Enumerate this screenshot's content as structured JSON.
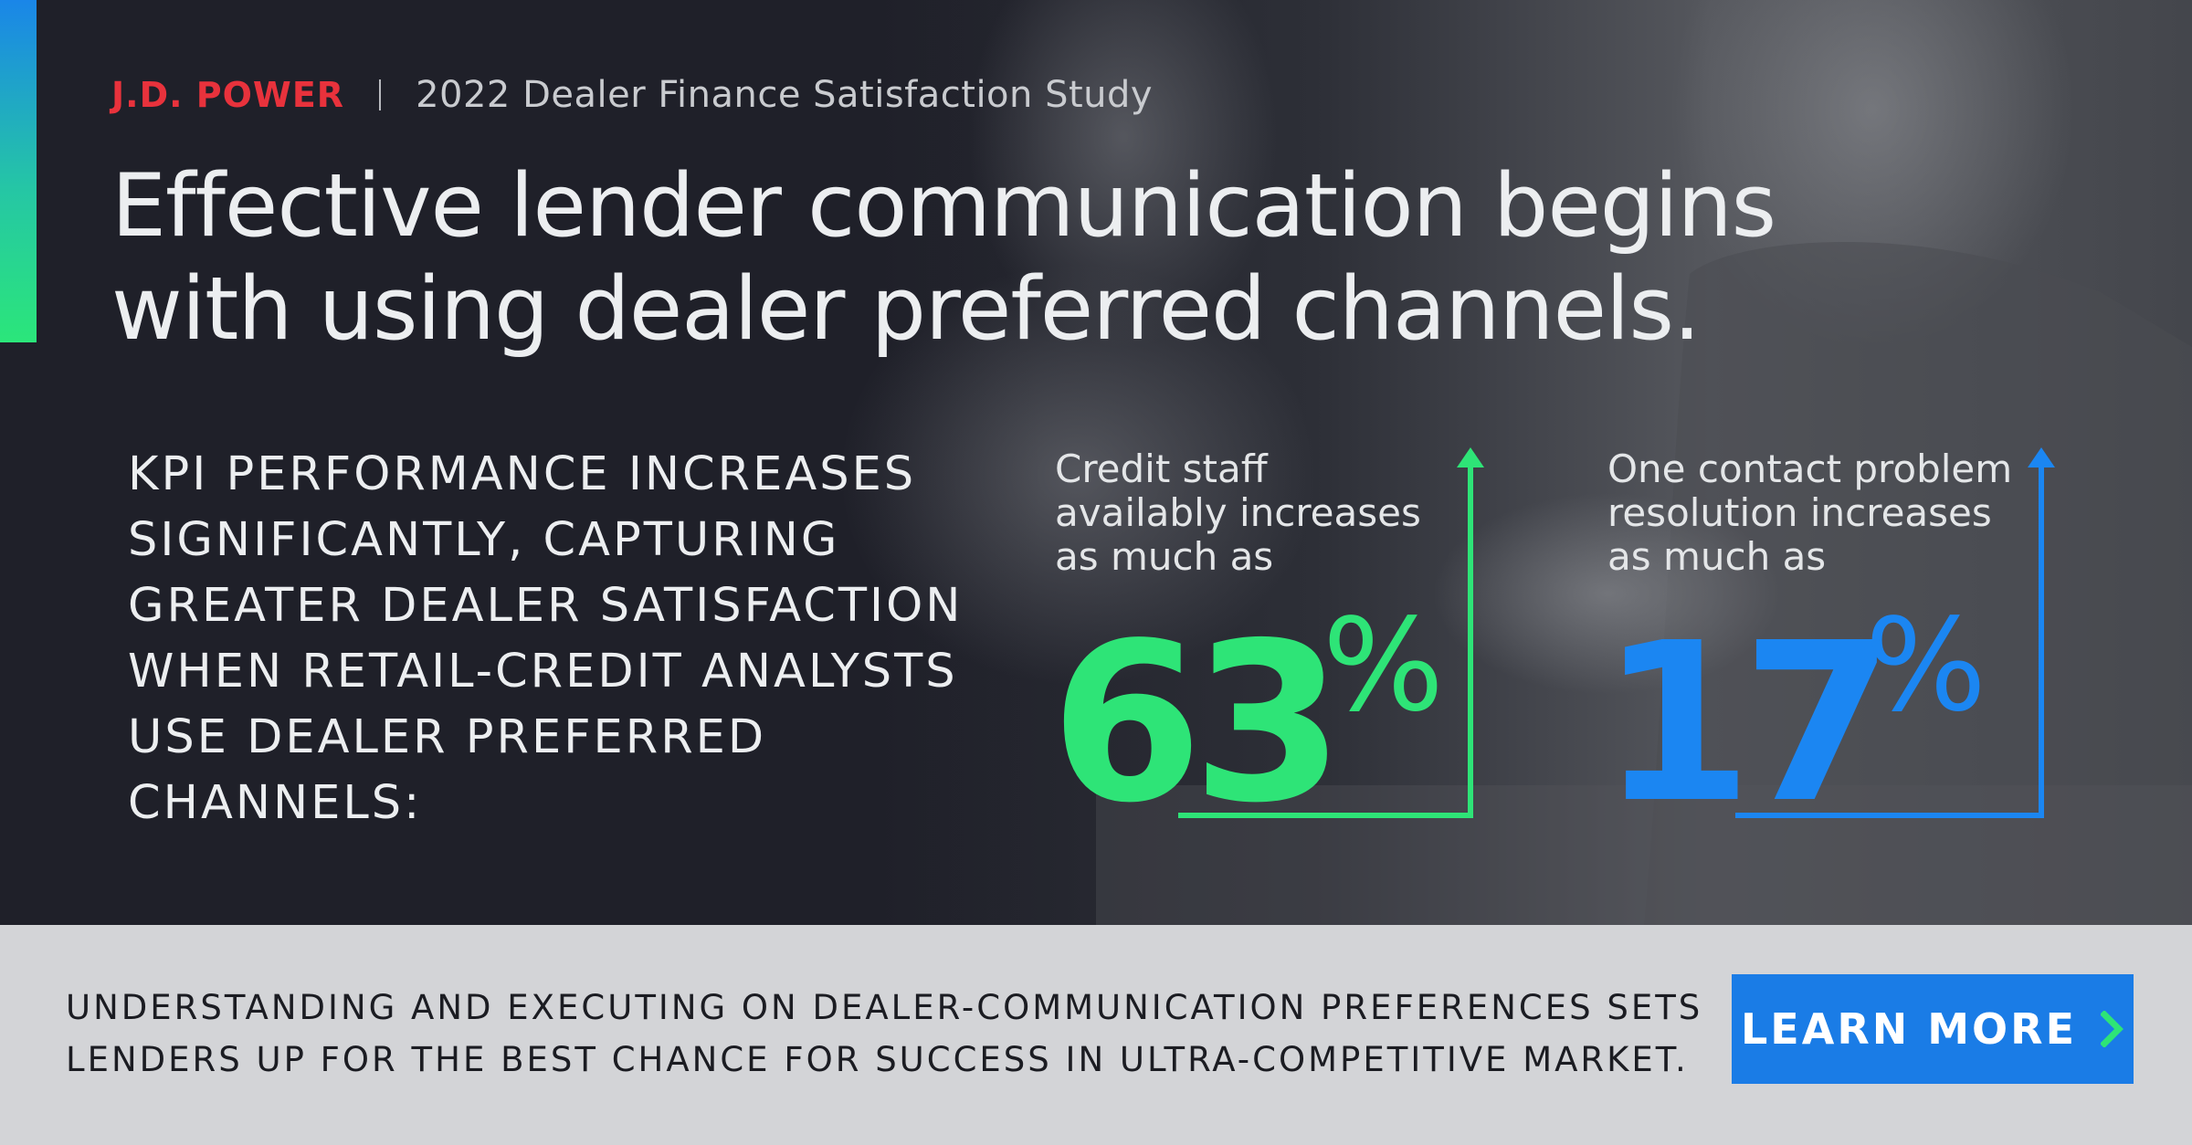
{
  "brand": {
    "logo": "J.D. POWER",
    "separator": "|",
    "study": "2022 Dealer Finance Satisfaction Study"
  },
  "headline": {
    "lines": [
      "Effective lender communication begins",
      "with using dealer preferred channels."
    ]
  },
  "kpi": {
    "lines": [
      "KPI PERFORMANCE INCREASES",
      "SIGNIFICANTLY, CAPTURING",
      "GREATER DEALER SATISFACTION",
      "WHEN RETAIL-CREDIT ANALYSTS",
      "USE DEALER PREFERRED",
      "CHANNELS:"
    ]
  },
  "stats": [
    {
      "label_lines": [
        "Credit staff",
        "availably increases",
        "as much as"
      ],
      "value": "63",
      "unit": "%",
      "color": "#2ee477",
      "icon": "arrow-up-icon"
    },
    {
      "label_lines": [
        "One contact problem",
        "resolution increases",
        "as much as"
      ],
      "value": "17",
      "unit": "%",
      "color": "#1b86f2",
      "icon": "arrow-up-icon"
    }
  ],
  "footer": {
    "lines": [
      "UNDERSTANDING AND EXECUTING ON DEALER-COMMUNICATION PREFERENCES SETS",
      "LENDERS UP FOR THE BEST CHANCE FOR SUCCESS IN ULTRA-COMPETITIVE MARKET."
    ],
    "cta_label": "LEARN MORE",
    "cta_icon": "chevron-right-icon",
    "cta_icon_color": "#2ee477",
    "cta_color": "#1a7ce6"
  }
}
